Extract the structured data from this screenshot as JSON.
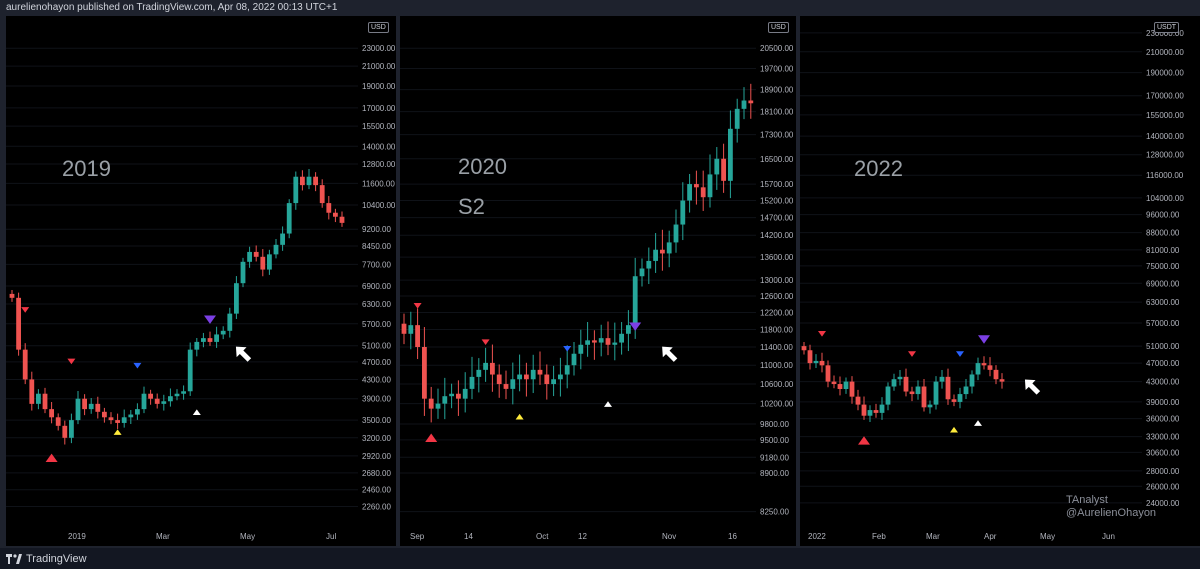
{
  "header": {
    "title": "aurelienohayon published on TradingView.com, Apr 08, 2022 00:13 UTC+1"
  },
  "footer": {
    "brand": "TradingView"
  },
  "watermark": {
    "line1": "TAnalyst",
    "line2": "@AurelienOhayon"
  },
  "colors": {
    "up": "#26a69a",
    "down": "#ef5350",
    "bg": "#000000",
    "red_marker": "#f23645",
    "blue_marker": "#2962ff",
    "purple_marker": "#7b3fe4",
    "yellow_marker": "#ffeb3b",
    "white_marker": "#ffffff"
  },
  "chart_data": [
    {
      "type": "candlestick",
      "title": "2019",
      "subtitle": "",
      "currency": "USD",
      "x_ticks": [
        "2019",
        "Mar",
        "May",
        "Jul"
      ],
      "y_ticks": [
        2260,
        2460,
        2680,
        2920,
        3200,
        3500,
        3900,
        4300,
        4700,
        5100,
        5700,
        6300,
        6900,
        7700,
        8450,
        9200,
        10400,
        11600,
        12800,
        14000,
        15500,
        17000,
        19000,
        21000,
        23000
      ],
      "y_ticks_labels": [
        "2260.00",
        "2460.00",
        "2680.00",
        "2920.00",
        "3200.00",
        "3500.00",
        "3900.00",
        "4300.00",
        "4700.00",
        "5100.00",
        "5700.00",
        "6300.00",
        "6900.00",
        "7700.00",
        "8450.00",
        "9200.00",
        "10400.00",
        "11600.00",
        "12800.00",
        "14000.00",
        "15500.00",
        "17000.00",
        "19000.00",
        "21000.00",
        "23000.00"
      ],
      "ylim": [
        2100,
        26000
      ],
      "scale": "log",
      "close_path": [
        6500,
        5000,
        4300,
        3800,
        4000,
        3700,
        3550,
        3400,
        3200,
        3500,
        3900,
        3700,
        3800,
        3650,
        3550,
        3500,
        3450,
        3550,
        3600,
        3700,
        4000,
        3900,
        3800,
        3850,
        3950,
        4000,
        4050,
        5000,
        5200,
        5300,
        5200,
        5400,
        5500,
        6000,
        7000,
        7800,
        8200,
        8000,
        7500,
        8100,
        8500,
        9000,
        10500,
        12000,
        11500,
        12000,
        11500,
        10500,
        10000,
        9800,
        9500
      ],
      "markers": [
        {
          "shape": "down",
          "color": "red",
          "index": 2,
          "price": 6100
        },
        {
          "shape": "up",
          "color": "red",
          "index": 6,
          "price": 2900
        },
        {
          "shape": "down",
          "color": "red",
          "index": 9,
          "price": 4700
        },
        {
          "shape": "up",
          "color": "yellow",
          "index": 16,
          "price": 3300
        },
        {
          "shape": "down",
          "color": "blue",
          "index": 19,
          "price": 4600
        },
        {
          "shape": "up",
          "color": "white",
          "index": 28,
          "price": 3650
        },
        {
          "shape": "down",
          "color": "purple",
          "index": 30,
          "price": 5800
        },
        {
          "shape": "arrow",
          "color": "white",
          "index": 35,
          "price": 4900
        }
      ]
    },
    {
      "type": "candlestick",
      "title": "2020",
      "subtitle": "S2",
      "currency": "USD",
      "x_ticks": [
        "Sep",
        "14",
        "Oct",
        "12",
        "Nov",
        "16"
      ],
      "y_ticks": [
        8250,
        8900,
        9180,
        9500,
        9800,
        10200,
        10600,
        11000,
        11400,
        11800,
        12200,
        12600,
        13000,
        13600,
        14200,
        14700,
        15200,
        15700,
        16500,
        17300,
        18100,
        18900,
        19700,
        20500
      ],
      "y_ticks_labels": [
        "8250.00",
        "8900.00",
        "9180.00",
        "9500.00",
        "9800.00",
        "10200.00",
        "10600.00",
        "11000.00",
        "11400.00",
        "11800.00",
        "12200.00",
        "12600.00",
        "13000.00",
        "13600.00",
        "14200.00",
        "14700.00",
        "15200.00",
        "15700.00",
        "16500.00",
        "17300.00",
        "18100.00",
        "18900.00",
        "19700.00",
        "20500.00"
      ],
      "ylim": [
        8100,
        21500
      ],
      "scale": "log",
      "close_path": [
        11700,
        11900,
        11400,
        10300,
        10100,
        10200,
        10350,
        10400,
        10300,
        10500,
        10750,
        10900,
        11050,
        10800,
        10600,
        10500,
        10700,
        10800,
        10700,
        10900,
        10800,
        10600,
        10700,
        10800,
        11000,
        11250,
        11450,
        11550,
        11500,
        11600,
        11450,
        11500,
        11700,
        11900,
        13100,
        13300,
        13500,
        13800,
        13700,
        14000,
        14500,
        15200,
        15700,
        15600,
        15300,
        16000,
        16500,
        15800,
        17500,
        18200,
        18500,
        18400
      ],
      "markers": [
        {
          "shape": "down",
          "color": "red",
          "index": 2,
          "price": 12350
        },
        {
          "shape": "up",
          "color": "red",
          "index": 4,
          "price": 9550
        },
        {
          "shape": "down",
          "color": "red",
          "index": 12,
          "price": 11500
        },
        {
          "shape": "up",
          "color": "yellow",
          "index": 17,
          "price": 9950
        },
        {
          "shape": "down",
          "color": "blue",
          "index": 24,
          "price": 11350
        },
        {
          "shape": "up",
          "color": "white",
          "index": 30,
          "price": 10200
        },
        {
          "shape": "down",
          "color": "purple",
          "index": 34,
          "price": 11850
        },
        {
          "shape": "arrow",
          "color": "white",
          "index": 39,
          "price": 11250
        }
      ]
    },
    {
      "type": "candlestick",
      "title": "2022",
      "subtitle": "",
      "currency": "USDT",
      "x_ticks": [
        "2022",
        "Feb",
        "Mar",
        "Apr",
        "May",
        "Jun"
      ],
      "y_ticks": [
        24000,
        26000,
        28000,
        30600,
        33000,
        36000,
        39000,
        43000,
        47000,
        51000,
        57000,
        63000,
        69000,
        75000,
        81000,
        88000,
        96000,
        104000,
        116000,
        128000,
        140000,
        155000,
        170000,
        190000,
        210000,
        230000
      ],
      "y_ticks_labels": [
        "24000.00",
        "26000.00",
        "28000.00",
        "30600.00",
        "33000.00",
        "36000.00",
        "39000.00",
        "43000.00",
        "47000.00",
        "51000.00",
        "57000.00",
        "63000.00",
        "69000.00",
        "75000.00",
        "81000.00",
        "88000.00",
        "96000.00",
        "104000.00",
        "116000.00",
        "128000.00",
        "140000.00",
        "155000.00",
        "170000.00",
        "190000.00",
        "210000.00",
        "230000.00"
      ],
      "ylim": [
        22000,
        240000
      ],
      "scale": "log",
      "close_path": [
        50000,
        47000,
        47500,
        46500,
        43000,
        42500,
        41500,
        43000,
        40000,
        38500,
        36500,
        37500,
        37000,
        38500,
        42000,
        43500,
        44000,
        41000,
        40500,
        42000,
        38000,
        38500,
        43000,
        44000,
        39500,
        39000,
        40500,
        42000,
        44500,
        47000,
        46500,
        45500,
        43500,
        43000
      ],
      "markers": [
        {
          "shape": "down",
          "color": "red",
          "index": 3,
          "price": 54000
        },
        {
          "shape": "up",
          "color": "red",
          "index": 10,
          "price": 32500
        },
        {
          "shape": "down",
          "color": "red",
          "index": 18,
          "price": 49000
        },
        {
          "shape": "up",
          "color": "yellow",
          "index": 25,
          "price": 34200
        },
        {
          "shape": "down",
          "color": "blue",
          "index": 26,
          "price": 49000
        },
        {
          "shape": "up",
          "color": "white",
          "index": 29,
          "price": 35300
        },
        {
          "shape": "down",
          "color": "purple",
          "index": 30,
          "price": 52500
        },
        {
          "shape": "arrow",
          "color": "white",
          "index": 38,
          "price": 42000
        }
      ]
    }
  ]
}
